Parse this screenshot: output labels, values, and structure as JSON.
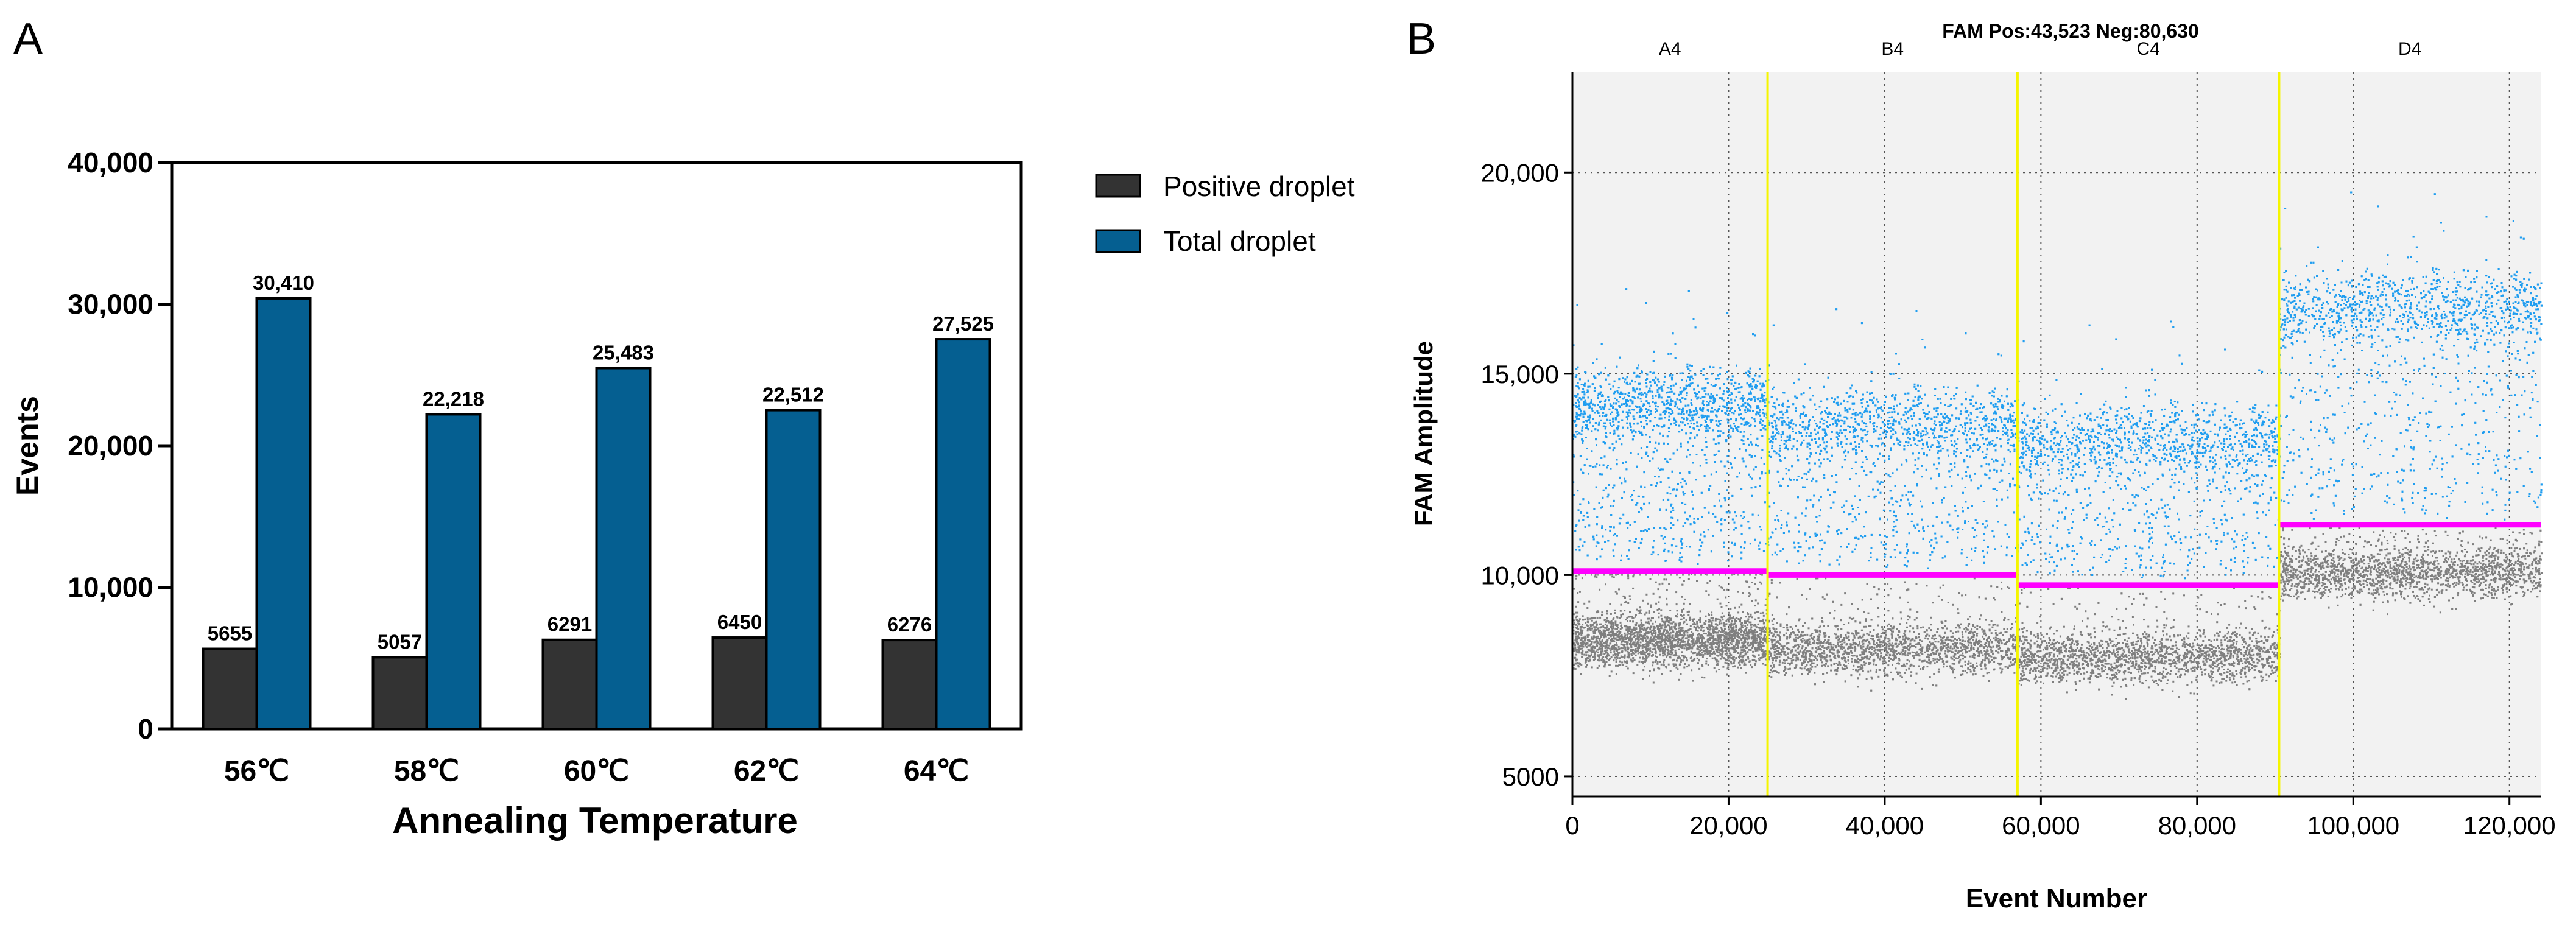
{
  "chart_data": [
    {
      "panel_label": "A",
      "type": "bar",
      "categories": [
        "56℃",
        "58℃",
        "60℃",
        "62℃",
        "64℃"
      ],
      "series": [
        {
          "name": "Positive droplet",
          "values": [
            5655,
            5057,
            6291,
            6450,
            6276
          ],
          "labels": [
            "5655",
            "5057",
            "6291",
            "6450",
            "6276"
          ],
          "color": "#333333"
        },
        {
          "name": "Total droplet",
          "values": [
            30410,
            22218,
            25483,
            22512,
            27525
          ],
          "labels": [
            "30,410",
            "22,218",
            "25,483",
            "22,512",
            "27,525"
          ],
          "color": "#055f91"
        }
      ],
      "xlabel": "Annealing Temperature",
      "ylabel": "Events",
      "ylim": [
        0,
        40000
      ],
      "yticks": [
        0,
        10000,
        20000,
        30000,
        40000
      ],
      "ytick_labels": [
        "0",
        "10,000",
        "20,000",
        "30,000",
        "40,000"
      ],
      "legend_position": "right",
      "grid": false
    },
    {
      "panel_label": "B",
      "type": "scatter",
      "title": "FAM Pos:43,523 Neg:80,630",
      "xlabel": "Event Number",
      "ylabel": "FAM Amplitude",
      "xlim": [
        0,
        124000
      ],
      "ylim": [
        4500,
        22500
      ],
      "xticks": [
        0,
        20000,
        40000,
        60000,
        80000,
        100000,
        120000
      ],
      "xtick_labels": [
        "0",
        "20,000",
        "40,000",
        "60,000",
        "80,000",
        "100,000",
        "120,000"
      ],
      "yticks": [
        5000,
        10000,
        15000,
        20000
      ],
      "ytick_labels": [
        "5000",
        "10,000",
        "15,000",
        "20,000"
      ],
      "grid": true,
      "wells": [
        {
          "name": "A4",
          "start": 0,
          "end": 25000,
          "threshold": 10100,
          "positive_center": 14300,
          "negative_center": 8400
        },
        {
          "name": "B4",
          "start": 25000,
          "end": 57000,
          "threshold": 10000,
          "positive_center": 13800,
          "negative_center": 8200
        },
        {
          "name": "C4",
          "start": 57000,
          "end": 90500,
          "threshold": 9750,
          "positive_center": 13400,
          "negative_center": 8000
        },
        {
          "name": "D4",
          "start": 90500,
          "end": 124000,
          "threshold": 11250,
          "positive_center": 16700,
          "negative_center": 10100
        }
      ],
      "colors": {
        "positive": "#1f9df0",
        "negative": "#7f7f7f",
        "threshold": "#ff00ff",
        "well_divider": "#f5f500",
        "plot_background": "#f2f2f2"
      }
    }
  ]
}
